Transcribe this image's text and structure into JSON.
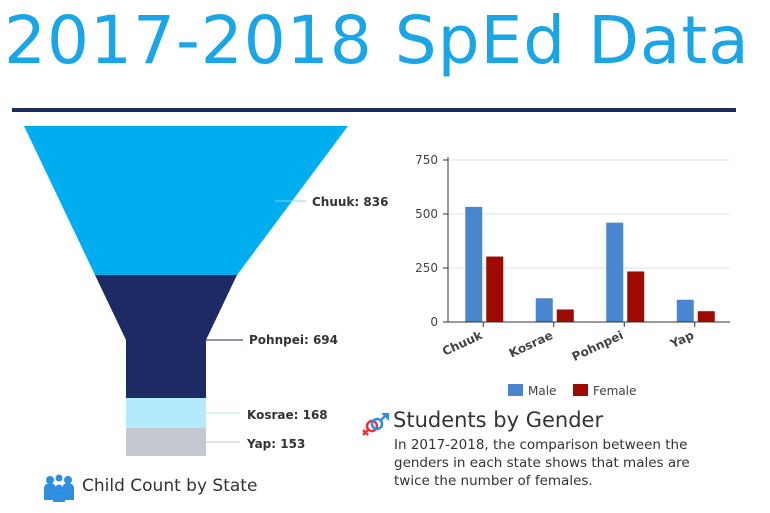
{
  "title": "2017-2018 SpEd Data",
  "funnel": {
    "caption": "Child Count by State",
    "stages": [
      {
        "label": "Chuuk: 836",
        "value": 836,
        "color": "#00adef"
      },
      {
        "label": "Pohnpei: 694",
        "value": 694,
        "color": "#1e2a63"
      },
      {
        "label": "Kosrae: 168",
        "value": 168,
        "color": "#b3eafc"
      },
      {
        "label": "Yap: 153",
        "value": 153,
        "color": "#c5c8d0"
      }
    ]
  },
  "chart_data": {
    "type": "bar",
    "categories": [
      "Chuuk",
      "Kosrae",
      "Pohnpei",
      "Yap"
    ],
    "series": [
      {
        "name": "Male",
        "color": "#4a86cf",
        "values": [
          533,
          110,
          460,
          103
        ]
      },
      {
        "name": "Female",
        "color": "#9c0a00",
        "values": [
          303,
          58,
          234,
          50
        ]
      }
    ],
    "ylim": [
      0,
      750
    ],
    "yticks": [
      "0",
      "250",
      "500",
      "750"
    ],
    "grid": true,
    "legend": "bottom"
  },
  "gender": {
    "heading": "Students by Gender",
    "text": "In 2017-2018, the comparison between the genders in each state shows that males are twice the number of females."
  }
}
